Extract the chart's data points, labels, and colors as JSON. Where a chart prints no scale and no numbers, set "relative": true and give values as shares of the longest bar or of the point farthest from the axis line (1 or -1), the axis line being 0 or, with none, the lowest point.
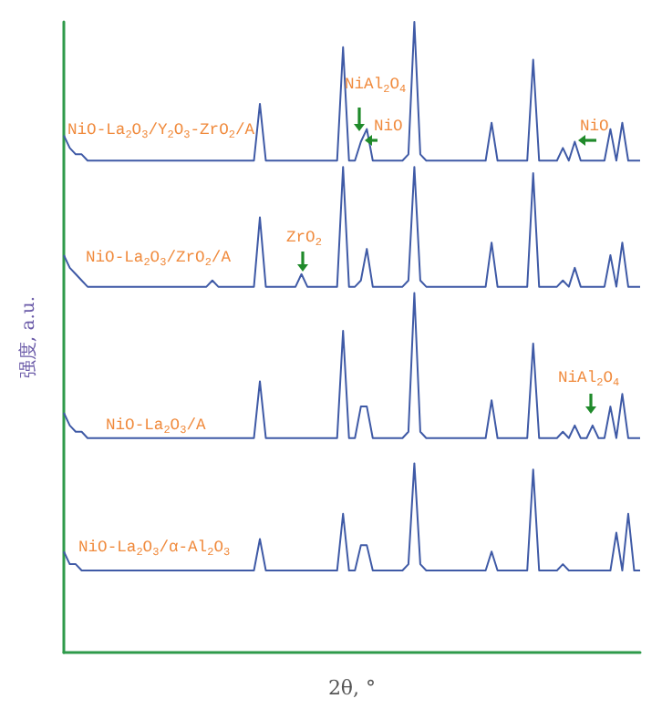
{
  "chart_data": {
    "type": "line",
    "relative": true,
    "xlabel": "2θ, °",
    "ylabel": "强度, a.u.",
    "categories": [
      null,
      null,
      null,
      null,
      null,
      null,
      null,
      null,
      null,
      null,
      null,
      null,
      null,
      null,
      null,
      null,
      null,
      null,
      null,
      null,
      null,
      null,
      null,
      null,
      null,
      null,
      null,
      null,
      null,
      null,
      null,
      null,
      null,
      null,
      null,
      null,
      null,
      null,
      null,
      null,
      null,
      null,
      null,
      null,
      null,
      null,
      null,
      null,
      null,
      null,
      null,
      null,
      null,
      null,
      null,
      null,
      null,
      null,
      null,
      null,
      null,
      null,
      null,
      null,
      null,
      null,
      null,
      null,
      null,
      null,
      null,
      null,
      null,
      null,
      null,
      null,
      null,
      null,
      null,
      null,
      null,
      null,
      null,
      null,
      null,
      null,
      null,
      null,
      null,
      null,
      null,
      null,
      null,
      null,
      null,
      null,
      null,
      null
    ],
    "series": [
      {
        "name": "NiO-La$_{2}$O$_{3}$/Y$_{2}$O$_{3}$-ZrO$_{2}$/A",
        "color": "#3f5aa6",
        "values": [
          0.82,
          0.8,
          0.79,
          0.79,
          0.78,
          0.78,
          0.78,
          0.78,
          0.78,
          0.78,
          0.78,
          0.78,
          0.78,
          0.78,
          0.78,
          0.78,
          0.78,
          0.78,
          0.78,
          0.78,
          0.78,
          0.78,
          0.78,
          0.78,
          0.78,
          0.78,
          0.78,
          0.78,
          0.78,
          0.78,
          0.78,
          0.78,
          0.78,
          0.87,
          0.78,
          0.78,
          0.78,
          0.78,
          0.78,
          0.78,
          0.78,
          0.78,
          0.78,
          0.78,
          0.78,
          0.78,
          0.78,
          0.96,
          0.78,
          0.78,
          0.81,
          0.83,
          0.78,
          0.78,
          0.78,
          0.78,
          0.78,
          0.78,
          0.79,
          1,
          0.79,
          0.78,
          0.78,
          0.78,
          0.78,
          0.78,
          0.78,
          0.78,
          0.78,
          0.78,
          0.78,
          0.78,
          0.84,
          0.78,
          0.78,
          0.78,
          0.78,
          0.78,
          0.78,
          0.94,
          0.78,
          0.78,
          0.78,
          0.78,
          0.8,
          0.78,
          0.81,
          0.78,
          0.78,
          0.78,
          0.78,
          0.78,
          0.83,
          0.78,
          0.84,
          0.78,
          0.78,
          0.78
        ]
      },
      {
        "name": "NiO-La$_{2}$O$_{3}$/ZrO$_{2}$/A",
        "color": "#3f5aa6",
        "values": [
          0.63,
          0.61,
          0.6,
          0.59,
          0.58,
          0.58,
          0.58,
          0.58,
          0.58,
          0.58,
          0.58,
          0.58,
          0.58,
          0.58,
          0.58,
          0.58,
          0.58,
          0.58,
          0.58,
          0.58,
          0.58,
          0.58,
          0.58,
          0.58,
          0.58,
          0.59,
          0.58,
          0.58,
          0.58,
          0.58,
          0.58,
          0.58,
          0.58,
          0.69,
          0.58,
          0.58,
          0.58,
          0.58,
          0.58,
          0.58,
          0.6,
          0.58,
          0.58,
          0.58,
          0.58,
          0.58,
          0.58,
          0.77,
          0.58,
          0.58,
          0.59,
          0.64,
          0.58,
          0.58,
          0.58,
          0.58,
          0.58,
          0.58,
          0.59,
          0.77,
          0.59,
          0.58,
          0.58,
          0.58,
          0.58,
          0.58,
          0.58,
          0.58,
          0.58,
          0.58,
          0.58,
          0.58,
          0.65,
          0.58,
          0.58,
          0.58,
          0.58,
          0.58,
          0.58,
          0.76,
          0.58,
          0.58,
          0.58,
          0.58,
          0.59,
          0.58,
          0.61,
          0.58,
          0.58,
          0.58,
          0.58,
          0.58,
          0.63,
          0.58,
          0.65,
          0.58,
          0.58,
          0.58
        ]
      },
      {
        "name": "NiO-La$_{2}$O$_{3}$/A",
        "color": "#3f5aa6",
        "values": [
          0.38,
          0.36,
          0.35,
          0.35,
          0.34,
          0.34,
          0.34,
          0.34,
          0.34,
          0.34,
          0.34,
          0.34,
          0.34,
          0.34,
          0.34,
          0.34,
          0.34,
          0.34,
          0.34,
          0.34,
          0.34,
          0.34,
          0.34,
          0.34,
          0.34,
          0.34,
          0.34,
          0.34,
          0.34,
          0.34,
          0.34,
          0.34,
          0.34,
          0.43,
          0.34,
          0.34,
          0.34,
          0.34,
          0.34,
          0.34,
          0.34,
          0.34,
          0.34,
          0.34,
          0.34,
          0.34,
          0.34,
          0.51,
          0.34,
          0.34,
          0.39,
          0.39,
          0.34,
          0.34,
          0.34,
          0.34,
          0.34,
          0.34,
          0.35,
          0.57,
          0.35,
          0.34,
          0.34,
          0.34,
          0.34,
          0.34,
          0.34,
          0.34,
          0.34,
          0.34,
          0.34,
          0.34,
          0.4,
          0.34,
          0.34,
          0.34,
          0.34,
          0.34,
          0.34,
          0.49,
          0.34,
          0.34,
          0.34,
          0.34,
          0.35,
          0.34,
          0.36,
          0.34,
          0.34,
          0.36,
          0.34,
          0.34,
          0.39,
          0.34,
          0.41,
          0.34,
          0.34,
          0.34
        ]
      },
      {
        "name": "NiO-La$_{2}$O$_{3}$/α-Al$_{2}$O$_{3}$",
        "color": "#3f5aa6",
        "values": [
          0.16,
          0.14,
          0.14,
          0.13,
          0.13,
          0.13,
          0.13,
          0.13,
          0.13,
          0.13,
          0.13,
          0.13,
          0.13,
          0.13,
          0.13,
          0.13,
          0.13,
          0.13,
          0.13,
          0.13,
          0.13,
          0.13,
          0.13,
          0.13,
          0.13,
          0.13,
          0.13,
          0.13,
          0.13,
          0.13,
          0.13,
          0.13,
          0.13,
          0.18,
          0.13,
          0.13,
          0.13,
          0.13,
          0.13,
          0.13,
          0.13,
          0.13,
          0.13,
          0.13,
          0.13,
          0.13,
          0.13,
          0.22,
          0.13,
          0.13,
          0.17,
          0.17,
          0.13,
          0.13,
          0.13,
          0.13,
          0.13,
          0.13,
          0.14,
          0.3,
          0.14,
          0.13,
          0.13,
          0.13,
          0.13,
          0.13,
          0.13,
          0.13,
          0.13,
          0.13,
          0.13,
          0.13,
          0.16,
          0.13,
          0.13,
          0.13,
          0.13,
          0.13,
          0.13,
          0.29,
          0.13,
          0.13,
          0.13,
          0.13,
          0.14,
          0.13,
          0.13,
          0.13,
          0.13,
          0.13,
          0.13,
          0.13,
          0.13,
          0.19,
          0.13,
          0.22,
          0.13,
          0.13
        ]
      }
    ],
    "annotations": [
      "NiAl$_{2}$O$_{4}$",
      "NiO",
      "NiO",
      "ZrO$_{2}$",
      "NiAl$_{2}$O$_{4}$"
    ]
  }
}
